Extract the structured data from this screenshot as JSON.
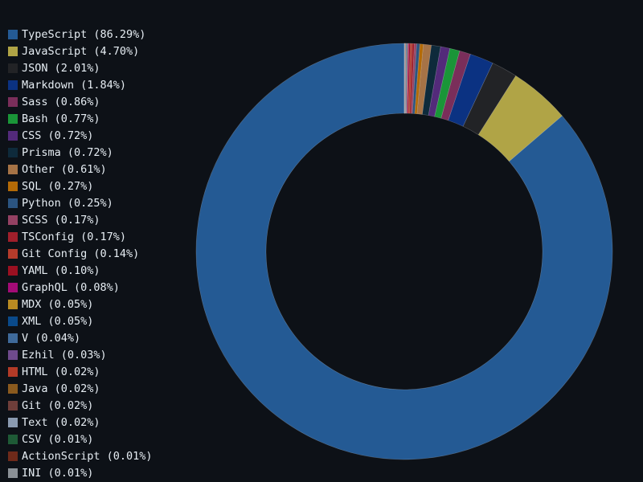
{
  "chart_data": {
    "type": "pie",
    "variant": "donut",
    "title": "",
    "legend_position": "top-left",
    "start_angle_deg": 90,
    "direction": "counterclockwise",
    "slices": [
      {
        "label": "TypeScript (86.29%)",
        "name": "TypeScript",
        "value": 86.29,
        "color": "#245a94"
      },
      {
        "label": "JavaScript (4.70%)",
        "name": "JavaScript",
        "value": 4.7,
        "color": "#b0a446"
      },
      {
        "label": "JSON (2.01%)",
        "name": "JSON",
        "value": 2.01,
        "color": "#222326"
      },
      {
        "label": "Markdown (1.84%)",
        "name": "Markdown",
        "value": 1.84,
        "color": "#0b3282"
      },
      {
        "label": "Sass (0.86%)",
        "name": "Sass",
        "value": 0.86,
        "color": "#7a2e5a"
      },
      {
        "label": "Bash (0.77%)",
        "name": "Bash",
        "value": 0.77,
        "color": "#1a9538"
      },
      {
        "label": "CSS (0.72%)",
        "name": "CSS",
        "value": 0.72,
        "color": "#532a7a"
      },
      {
        "label": "Prisma (0.72%)",
        "name": "Prisma",
        "value": 0.72,
        "color": "#0e2a3b"
      },
      {
        "label": "Other (0.61%)",
        "name": "Other",
        "value": 0.61,
        "color": "#a67346"
      },
      {
        "label": "SQL (0.27%)",
        "name": "SQL",
        "value": 0.27,
        "color": "#b36a07"
      },
      {
        "label": "Python (0.25%)",
        "name": "Python",
        "value": 0.25,
        "color": "#2b5480"
      },
      {
        "label": "SCSS (0.17%)",
        "name": "SCSS",
        "value": 0.17,
        "color": "#944163"
      },
      {
        "label": "TSConfig (0.17%)",
        "name": "TSConfig",
        "value": 0.17,
        "color": "#a01f2b"
      },
      {
        "label": "Git Config (0.14%)",
        "name": "Git Config",
        "value": 0.14,
        "color": "#b53b2b"
      },
      {
        "label": "YAML (0.10%)",
        "name": "YAML",
        "value": 0.1,
        "color": "#9a1021"
      },
      {
        "label": "GraphQL (0.08%)",
        "name": "GraphQL",
        "value": 0.08,
        "color": "#a30b76"
      },
      {
        "label": "MDX (0.05%)",
        "name": "MDX",
        "value": 0.05,
        "color": "#b88a22"
      },
      {
        "label": "XML (0.05%)",
        "name": "XML",
        "value": 0.05,
        "color": "#0a4a8a"
      },
      {
        "label": "V (0.04%)",
        "name": "V",
        "value": 0.04,
        "color": "#3f6a9a"
      },
      {
        "label": "Ezhil (0.03%)",
        "name": "Ezhil",
        "value": 0.03,
        "color": "#6e4a8c"
      },
      {
        "label": "HTML (0.02%)",
        "name": "HTML",
        "value": 0.02,
        "color": "#b23a27"
      },
      {
        "label": "Java (0.02%)",
        "name": "Java",
        "value": 0.02,
        "color": "#8a5a1e"
      },
      {
        "label": "Git (0.02%)",
        "name": "Git",
        "value": 0.02,
        "color": "#6e3e3a"
      },
      {
        "label": "Text (0.02%)",
        "name": "Text",
        "value": 0.02,
        "color": "#8a9ab0"
      },
      {
        "label": "CSV (0.01%)",
        "name": "CSV",
        "value": 0.01,
        "color": "#1e5a36"
      },
      {
        "label": "ActionScript (0.01%)",
        "name": "ActionScript",
        "value": 0.01,
        "color": "#6e2a1a"
      },
      {
        "label": "INI (0.01%)",
        "name": "INI",
        "value": 0.01,
        "color": "#8a9096"
      }
    ]
  }
}
